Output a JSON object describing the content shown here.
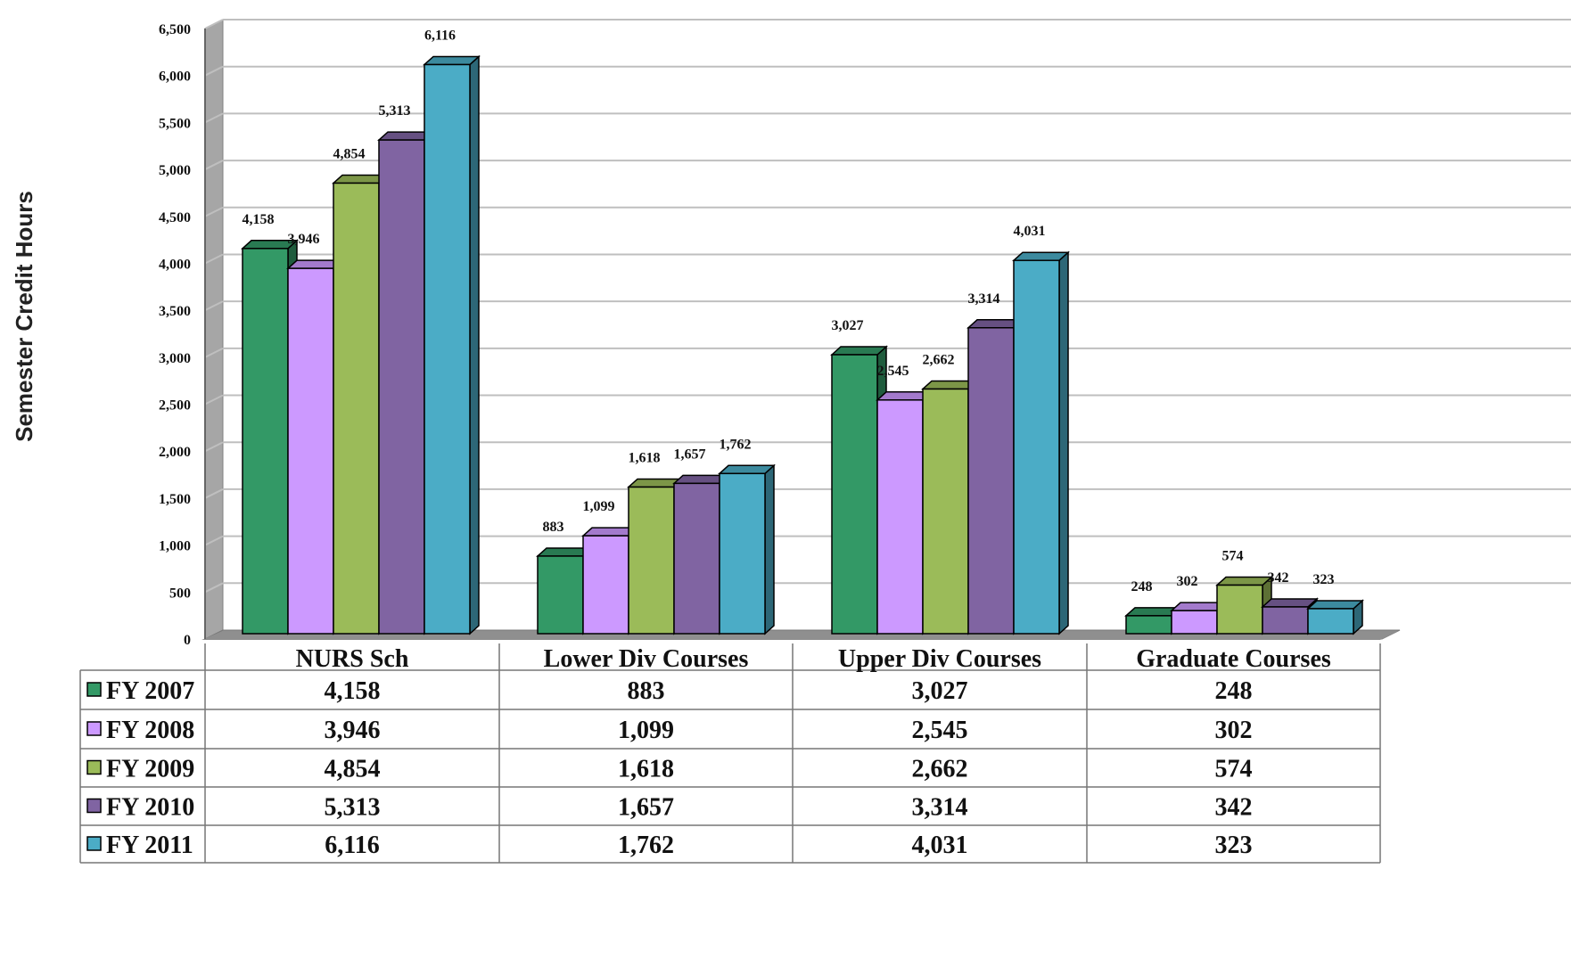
{
  "chart_data": {
    "type": "bar",
    "ylabel": "Semester Credit Hours",
    "ylim": [
      0,
      6500
    ],
    "yticks": [
      "0",
      "500",
      "1,000",
      "1,500",
      "2,000",
      "2,500",
      "3,000",
      "3,500",
      "4,000",
      "4,500",
      "5,000",
      "5,500",
      "6,000",
      "6,500"
    ],
    "categories": [
      "NURS Sch",
      "Lower Div Courses",
      "Upper Div Courses",
      "Graduate Courses"
    ],
    "series": [
      {
        "name": "FY 2007",
        "color": "#339966",
        "values": [
          4158,
          883,
          3027,
          248
        ],
        "labels": [
          "4,158",
          "883",
          "3,027",
          "248"
        ]
      },
      {
        "name": "FY 2008",
        "color": "#CC99FF",
        "values": [
          3946,
          1099,
          2545,
          302
        ],
        "labels": [
          "3,946",
          "1,099",
          "2,545",
          "302"
        ]
      },
      {
        "name": "FY 2009",
        "color": "#9BBB59",
        "values": [
          4854,
          1618,
          2662,
          574
        ],
        "labels": [
          "4,854",
          "1,618",
          "2,662",
          "574"
        ]
      },
      {
        "name": "FY 2010",
        "color": "#8064A2",
        "values": [
          5313,
          1657,
          3314,
          342
        ],
        "labels": [
          "5,313",
          "1,657",
          "3,314",
          "342"
        ]
      },
      {
        "name": "FY 2011",
        "color": "#4BACC6",
        "values": [
          6116,
          1762,
          4031,
          323
        ],
        "labels": [
          "6,116",
          "1,762",
          "4,031",
          "323"
        ]
      }
    ],
    "grid": true,
    "legend": "data-table-below"
  }
}
